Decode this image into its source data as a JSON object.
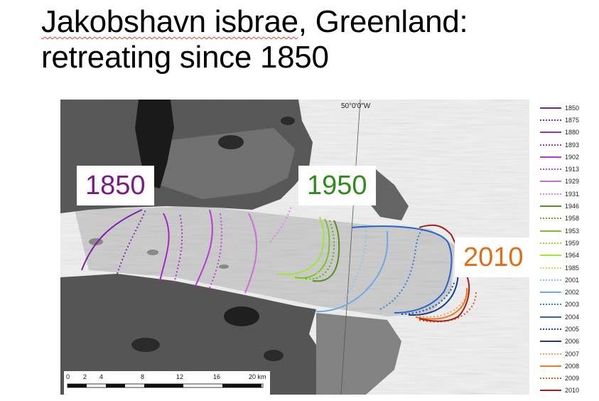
{
  "title": {
    "line1_ul": "Jakobshavn isbrae",
    "line1_rest": ", Greenland:",
    "line2": "retreating since 1850"
  },
  "map": {
    "longitude_label": "50°0'0\"W",
    "labels": {
      "y1850": {
        "text": "1850",
        "color": "#7a1a86"
      },
      "y1950": {
        "text": "1950",
        "color": "#2f8c1c"
      },
      "y2010": {
        "text": "2010",
        "color": "#e06d18"
      }
    },
    "scale": {
      "ticks": [
        "0",
        "2",
        "4",
        "8",
        "12",
        "16",
        "20 km"
      ]
    }
  },
  "legend": [
    {
      "year": "1850",
      "color": "#7f1fa8",
      "style": "solid"
    },
    {
      "year": "1875",
      "color": "#8f24b8",
      "style": "dotted"
    },
    {
      "year": "1880",
      "color": "#a22ac4",
      "style": "solid"
    },
    {
      "year": "1893",
      "color": "#a82fc9",
      "style": "dotted"
    },
    {
      "year": "1902",
      "color": "#b93ad2",
      "style": "solid"
    },
    {
      "year": "1913",
      "color": "#c043d7",
      "style": "dotted"
    },
    {
      "year": "1929",
      "color": "#d169e0",
      "style": "solid"
    },
    {
      "year": "1931",
      "color": "#dc84e6",
      "style": "dotted"
    },
    {
      "year": "1946",
      "color": "#5b8c1e",
      "style": "solid"
    },
    {
      "year": "1958",
      "color": "#6aa626",
      "style": "dotted"
    },
    {
      "year": "1953",
      "color": "#7dc22d",
      "style": "solid"
    },
    {
      "year": "1959",
      "color": "#8fd636",
      "style": "dotted"
    },
    {
      "year": "1964",
      "color": "#9ee63c",
      "style": "solid"
    },
    {
      "year": "1985",
      "color": "#b0ef52",
      "style": "dotted"
    },
    {
      "year": "2001",
      "color": "#8fc0ec",
      "style": "dotted"
    },
    {
      "year": "2002",
      "color": "#6aaae6",
      "style": "solid"
    },
    {
      "year": "2003",
      "color": "#2f7fd6",
      "style": "dotted"
    },
    {
      "year": "2004",
      "color": "#2366cc",
      "style": "solid"
    },
    {
      "year": "2005",
      "color": "#1e4fa8",
      "style": "dotted"
    },
    {
      "year": "2006",
      "color": "#1a3c8c",
      "style": "solid"
    },
    {
      "year": "2007",
      "color": "#f4a05e",
      "style": "dotted"
    },
    {
      "year": "2008",
      "color": "#f07a22",
      "style": "solid"
    },
    {
      "year": "2009",
      "color": "#e0521a",
      "style": "dotted"
    },
    {
      "year": "2010",
      "color": "#a52016",
      "style": "solid"
    }
  ]
}
